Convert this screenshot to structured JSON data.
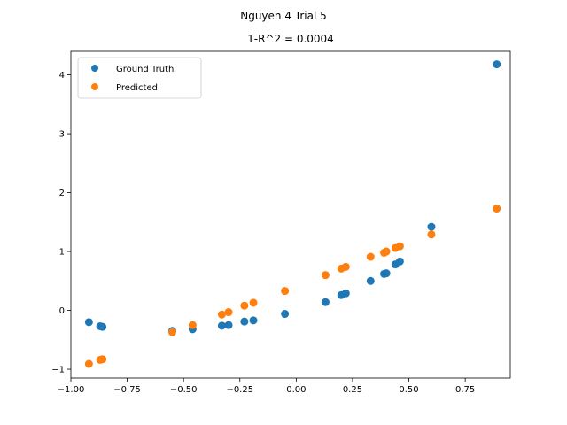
{
  "chart_data": {
    "type": "scatter",
    "suptitle": "Nguyen 4 Trial 5",
    "title": "1-R^2 = 0.0004",
    "xlabel": "",
    "ylabel": "",
    "xlim": [
      -1.0,
      0.95
    ],
    "ylim": [
      -1.15,
      4.4
    ],
    "xticks": [
      -1.0,
      -0.75,
      -0.5,
      -0.25,
      0.0,
      0.25,
      0.5,
      0.75
    ],
    "xtick_labels": [
      "−1.00",
      "−0.75",
      "−0.50",
      "−0.25",
      "0.00",
      "0.25",
      "0.50",
      "0.75"
    ],
    "yticks": [
      -1,
      0,
      1,
      2,
      3,
      4
    ],
    "ytick_labels": [
      "−1",
      "0",
      "1",
      "2",
      "3",
      "4"
    ],
    "grid": false,
    "legend_position": "top-left",
    "series": [
      {
        "name": "Ground Truth",
        "color": "#1f77b4",
        "points": [
          [
            -0.92,
            -0.2
          ],
          [
            -0.87,
            -0.27
          ],
          [
            -0.86,
            -0.28
          ],
          [
            -0.55,
            -0.35
          ],
          [
            -0.46,
            -0.32
          ],
          [
            -0.33,
            -0.26
          ],
          [
            -0.3,
            -0.25
          ],
          [
            -0.23,
            -0.19
          ],
          [
            -0.19,
            -0.17
          ],
          [
            -0.05,
            -0.06
          ],
          [
            0.13,
            0.14
          ],
          [
            0.2,
            0.26
          ],
          [
            0.22,
            0.29
          ],
          [
            0.33,
            0.5
          ],
          [
            0.39,
            0.62
          ],
          [
            0.4,
            0.63
          ],
          [
            0.44,
            0.78
          ],
          [
            0.46,
            0.83
          ],
          [
            0.6,
            1.42
          ],
          [
            0.89,
            4.18
          ]
        ]
      },
      {
        "name": "Predicted",
        "color": "#ff7f0e",
        "points": [
          [
            -0.92,
            -0.91
          ],
          [
            -0.87,
            -0.84
          ],
          [
            -0.86,
            -0.83
          ],
          [
            -0.55,
            -0.37
          ],
          [
            -0.46,
            -0.25
          ],
          [
            -0.33,
            -0.07
          ],
          [
            -0.3,
            -0.03
          ],
          [
            -0.23,
            0.08
          ],
          [
            -0.19,
            0.13
          ],
          [
            -0.05,
            0.33
          ],
          [
            0.13,
            0.6
          ],
          [
            0.2,
            0.71
          ],
          [
            0.22,
            0.74
          ],
          [
            0.33,
            0.91
          ],
          [
            0.39,
            0.98
          ],
          [
            0.4,
            1.0
          ],
          [
            0.44,
            1.06
          ],
          [
            0.46,
            1.09
          ],
          [
            0.6,
            1.29
          ],
          [
            0.89,
            1.73
          ]
        ]
      }
    ]
  }
}
